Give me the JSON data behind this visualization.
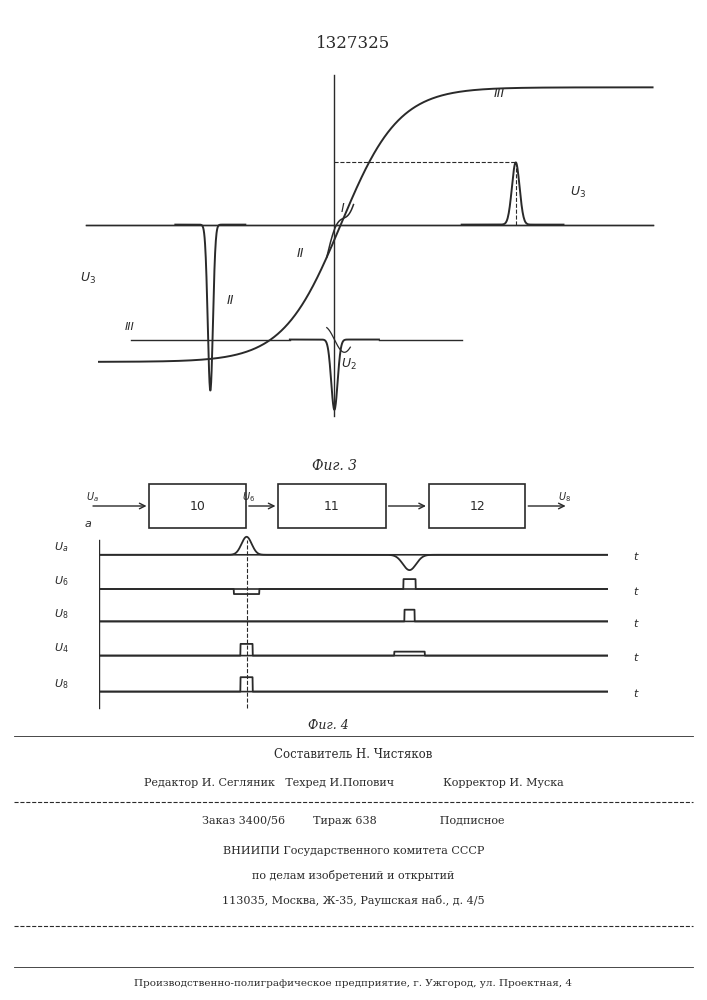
{
  "title": "1327325",
  "fig3_caption": "Фиг. 3",
  "fig4_caption": "Фиг. 4",
  "line_color": "#2a2a2a",
  "box_labels": [
    "10",
    "11",
    "12"
  ],
  "text_info": [
    "Составитель Н. Чистяков",
    "Редактор И. Сегляник   Техред И.Попович              Корректор И. Муска",
    "Заказ 3400/56        Тираж 638                  Подписное",
    "ВНИИПИ Государственного комитета СССР",
    "по делам изобретений и открытий",
    "113035, Москва, Ж-35, Раушская наб., д. 4/5",
    "Производственно-полиграфическое предприятие, г. Ужгород, ул. Проектная, 4"
  ]
}
